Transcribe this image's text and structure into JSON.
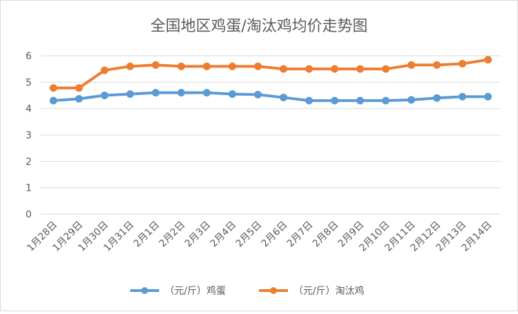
{
  "chart_data": {
    "type": "line",
    "title": "全国地区鸡蛋/淘汰鸡均价走势图",
    "xlabel": "",
    "ylabel": "",
    "ylim": [
      0,
      6
    ],
    "yticks": [
      0,
      1,
      2,
      3,
      4,
      5,
      6
    ],
    "grid": true,
    "legend_position": "bottom",
    "categories": [
      "1月28日",
      "1月29日",
      "1月30日",
      "1月31日",
      "2月1日",
      "2月2日",
      "2月3日",
      "2月4日",
      "2月5日",
      "2月6日",
      "2月7日",
      "2月8日",
      "2月9日",
      "2月10日",
      "2月11日",
      "2月12日",
      "2月13日",
      "2月14日"
    ],
    "series": [
      {
        "name": "（元/斤）鸡蛋",
        "color": "#5b9bd5",
        "values": [
          4.3,
          4.37,
          4.5,
          4.55,
          4.6,
          4.6,
          4.6,
          4.55,
          4.53,
          4.42,
          4.3,
          4.3,
          4.3,
          4.3,
          4.33,
          4.4,
          4.45,
          4.45
        ]
      },
      {
        "name": "（元/斤）淘汰鸡",
        "color": "#ed7d31",
        "values": [
          4.78,
          4.78,
          5.45,
          5.6,
          5.65,
          5.6,
          5.6,
          5.6,
          5.6,
          5.5,
          5.5,
          5.5,
          5.5,
          5.5,
          5.65,
          5.65,
          5.7,
          5.85
        ]
      }
    ]
  }
}
